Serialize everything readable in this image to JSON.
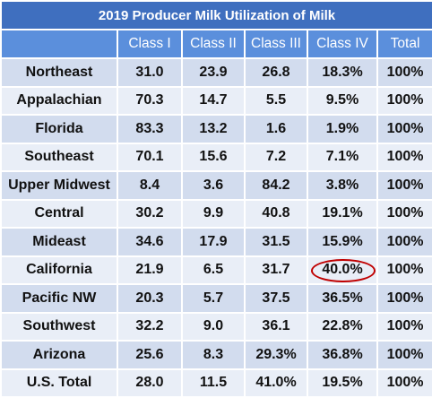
{
  "title": "2019 Producer Milk Utilization of Milk",
  "columns": [
    "",
    "Class I",
    "Class II",
    "Class III",
    "Class IV",
    "Total"
  ],
  "rows": [
    {
      "region": "Northeast",
      "values": [
        "31.0",
        "23.9",
        "26.8",
        "18.3%",
        "100%"
      ]
    },
    {
      "region": "Appalachian",
      "values": [
        "70.3",
        "14.7",
        "5.5",
        "9.5%",
        "100%"
      ]
    },
    {
      "region": "Florida",
      "values": [
        "83.3",
        "13.2",
        "1.6",
        "1.9%",
        "100%"
      ]
    },
    {
      "region": "Southeast",
      "values": [
        "70.1",
        "15.6",
        "7.2",
        "7.1%",
        "100%"
      ]
    },
    {
      "region": "Upper Midwest",
      "values": [
        "8.4",
        "3.6",
        "84.2",
        "3.8%",
        "100%"
      ]
    },
    {
      "region": "Central",
      "values": [
        "30.2",
        "9.9",
        "40.8",
        "19.1%",
        "100%"
      ]
    },
    {
      "region": "Mideast",
      "values": [
        "34.6",
        "17.9",
        "31.5",
        "15.9%",
        "100%"
      ]
    },
    {
      "region": "California",
      "values": [
        "21.9",
        "6.5",
        "31.7",
        "40.0%",
        "100%"
      ]
    },
    {
      "region": "Pacific NW",
      "values": [
        "20.3",
        "5.7",
        "37.5",
        "36.5%",
        "100%"
      ]
    },
    {
      "region": "Southwest",
      "values": [
        "32.2",
        "9.0",
        "36.1",
        "22.8%",
        "100%"
      ]
    },
    {
      "region": "Arizona",
      "values": [
        "25.6",
        "8.3",
        "29.3%",
        "36.8%",
        "100%"
      ]
    },
    {
      "region": "U.S. Total",
      "values": [
        "28.0",
        "11.5",
        "41.0%",
        "19.5%",
        "100%"
      ]
    }
  ],
  "highlight": {
    "row": 7,
    "col": 3,
    "color": "#c00000"
  },
  "colors": {
    "title_bg": "#3f6fbf",
    "header_bg": "#5b8fdc",
    "row_dark": "#d2dcee",
    "row_light": "#e9eef7",
    "highlight_oval": "#c00000"
  }
}
